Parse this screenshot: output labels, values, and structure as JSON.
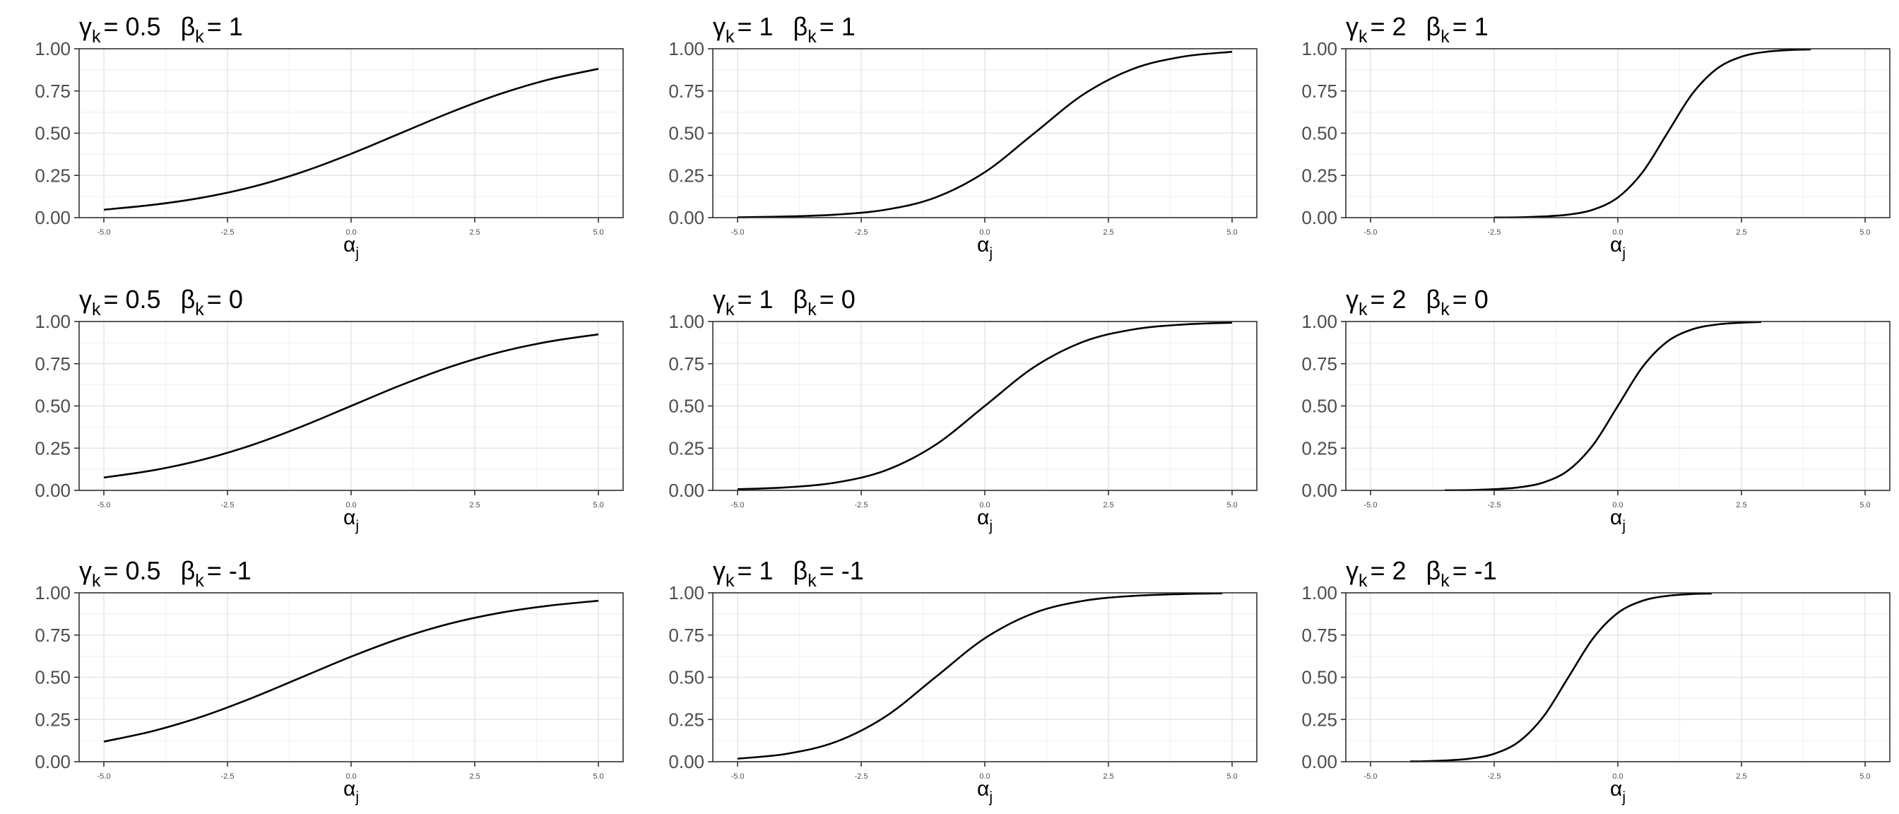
{
  "chart_data": [
    {
      "type": "line",
      "title": {
        "gamma": "γ",
        "gamma_sub": "k",
        "gamma_value": "= 0.5",
        "beta": "β",
        "beta_sub": "k",
        "beta_value": "= 1"
      },
      "xlabel": {
        "base": "α",
        "sub": "j"
      },
      "gamma": 0.5,
      "beta": 1,
      "x_domain": [
        -5,
        5
      ],
      "y_domain": [
        0,
        1
      ],
      "x_ticks": [
        -5,
        -2.5,
        0,
        2.5,
        5
      ],
      "x_tick_labels": [
        "-5.0",
        "-2.5",
        "0.0",
        "2.5",
        "5.0"
      ],
      "y_ticks": [
        0,
        0.25,
        0.5,
        0.75,
        1
      ],
      "y_tick_labels": [
        "0.00",
        "0.25",
        "0.50",
        "0.75",
        "1.00"
      ],
      "x": [
        -5,
        -4,
        -3,
        -2,
        -1,
        0,
        1,
        2,
        3,
        4,
        5
      ],
      "y": [
        0.047,
        0.076,
        0.119,
        0.182,
        0.269,
        0.378,
        0.5,
        0.622,
        0.731,
        0.818,
        0.881
      ],
      "grid": true,
      "legend": "none"
    },
    {
      "type": "line",
      "title": {
        "gamma": "γ",
        "gamma_sub": "k",
        "gamma_value": "= 1",
        "beta": "β",
        "beta_sub": "k",
        "beta_value": "= 1"
      },
      "xlabel": {
        "base": "α",
        "sub": "j"
      },
      "gamma": 1,
      "beta": 1,
      "x_domain": [
        -5,
        5
      ],
      "y_domain": [
        0,
        1
      ],
      "x_ticks": [
        -5,
        -2.5,
        0,
        2.5,
        5
      ],
      "x_tick_labels": [
        "-5.0",
        "-2.5",
        "0.0",
        "2.5",
        "5.0"
      ],
      "y_ticks": [
        0,
        0.25,
        0.5,
        0.75,
        1
      ],
      "y_tick_labels": [
        "0.00",
        "0.25",
        "0.50",
        "0.75",
        "1.00"
      ],
      "x": [
        -5,
        -4,
        -3,
        -2,
        -1,
        0,
        1,
        2,
        3,
        4,
        5
      ],
      "y": [
        0.002,
        0.007,
        0.018,
        0.047,
        0.119,
        0.269,
        0.5,
        0.731,
        0.881,
        0.953,
        0.982
      ],
      "grid": true,
      "legend": "none"
    },
    {
      "type": "line",
      "title": {
        "gamma": "γ",
        "gamma_sub": "k",
        "gamma_value": "= 2",
        "beta": "β",
        "beta_sub": "k",
        "beta_value": "= 1"
      },
      "xlabel": {
        "base": "α",
        "sub": "j"
      },
      "gamma": 2,
      "beta": 1,
      "x_domain": [
        -5,
        5
      ],
      "y_domain": [
        0,
        1
      ],
      "x_ticks": [
        -5,
        -2.5,
        0,
        2.5,
        5
      ],
      "x_tick_labels": [
        "-5.0",
        "-2.5",
        "0.0",
        "2.5",
        "5.0"
      ],
      "y_ticks": [
        0,
        0.25,
        0.5,
        0.75,
        1
      ],
      "y_tick_labels": [
        "0.00",
        "0.25",
        "0.50",
        "0.75",
        "1.00"
      ],
      "x": [
        -2.5,
        -2,
        -1.5,
        -1,
        -0.5,
        0,
        0.5,
        1,
        1.5,
        2,
        2.5,
        3,
        3.5,
        3.9
      ],
      "y": [
        0.001,
        0.002,
        0.007,
        0.018,
        0.047,
        0.119,
        0.269,
        0.5,
        0.731,
        0.881,
        0.953,
        0.982,
        0.993,
        0.996
      ],
      "grid": true,
      "legend": "none"
    },
    {
      "type": "line",
      "title": {
        "gamma": "γ",
        "gamma_sub": "k",
        "gamma_value": "= 0.5",
        "beta": "β",
        "beta_sub": "k",
        "beta_value": "= 0"
      },
      "xlabel": {
        "base": "α",
        "sub": "j"
      },
      "gamma": 0.5,
      "beta": 0,
      "x_domain": [
        -5,
        5
      ],
      "y_domain": [
        0,
        1
      ],
      "x_ticks": [
        -5,
        -2.5,
        0,
        2.5,
        5
      ],
      "x_tick_labels": [
        "-5.0",
        "-2.5",
        "0.0",
        "2.5",
        "5.0"
      ],
      "y_ticks": [
        0,
        0.25,
        0.5,
        0.75,
        1
      ],
      "y_tick_labels": [
        "0.00",
        "0.25",
        "0.50",
        "0.75",
        "1.00"
      ],
      "x": [
        -5,
        -4,
        -3,
        -2,
        -1,
        0,
        1,
        2,
        3,
        4,
        5
      ],
      "y": [
        0.076,
        0.119,
        0.182,
        0.269,
        0.378,
        0.5,
        0.622,
        0.731,
        0.818,
        0.881,
        0.924
      ],
      "grid": true,
      "legend": "none"
    },
    {
      "type": "line",
      "title": {
        "gamma": "γ",
        "gamma_sub": "k",
        "gamma_value": "= 1",
        "beta": "β",
        "beta_sub": "k",
        "beta_value": "= 0"
      },
      "xlabel": {
        "base": "α",
        "sub": "j"
      },
      "gamma": 1,
      "beta": 0,
      "x_domain": [
        -5,
        5
      ],
      "y_domain": [
        0,
        1
      ],
      "x_ticks": [
        -5,
        -2.5,
        0,
        2.5,
        5
      ],
      "x_tick_labels": [
        "-5.0",
        "-2.5",
        "0.0",
        "2.5",
        "5.0"
      ],
      "y_ticks": [
        0,
        0.25,
        0.5,
        0.75,
        1
      ],
      "y_tick_labels": [
        "0.00",
        "0.25",
        "0.50",
        "0.75",
        "1.00"
      ],
      "x": [
        -5,
        -4,
        -3,
        -2,
        -1,
        0,
        1,
        2,
        3,
        4,
        5
      ],
      "y": [
        0.007,
        0.018,
        0.047,
        0.119,
        0.269,
        0.5,
        0.731,
        0.881,
        0.953,
        0.982,
        0.993
      ],
      "grid": true,
      "legend": "none"
    },
    {
      "type": "line",
      "title": {
        "gamma": "γ",
        "gamma_sub": "k",
        "gamma_value": "= 2",
        "beta": "β",
        "beta_sub": "k",
        "beta_value": "= 0"
      },
      "xlabel": {
        "base": "α",
        "sub": "j"
      },
      "gamma": 2,
      "beta": 0,
      "x_domain": [
        -5,
        5
      ],
      "y_domain": [
        0,
        1
      ],
      "x_ticks": [
        -5,
        -2.5,
        0,
        2.5,
        5
      ],
      "x_tick_labels": [
        "-5.0",
        "-2.5",
        "0.0",
        "2.5",
        "5.0"
      ],
      "y_ticks": [
        0,
        0.25,
        0.5,
        0.75,
        1
      ],
      "y_tick_labels": [
        "0.00",
        "0.25",
        "0.50",
        "0.75",
        "1.00"
      ],
      "x": [
        -3.5,
        -3,
        -2.5,
        -2,
        -1.5,
        -1,
        -0.5,
        0,
        0.5,
        1,
        1.5,
        2,
        2.5,
        2.9
      ],
      "y": [
        0.001,
        0.002,
        0.007,
        0.018,
        0.047,
        0.119,
        0.269,
        0.5,
        0.731,
        0.881,
        0.953,
        0.982,
        0.993,
        0.997
      ],
      "grid": true,
      "legend": "none"
    },
    {
      "type": "line",
      "title": {
        "gamma": "γ",
        "gamma_sub": "k",
        "gamma_value": "= 0.5",
        "beta": "β",
        "beta_sub": "k",
        "beta_value": "= -1"
      },
      "xlabel": {
        "base": "α",
        "sub": "j"
      },
      "gamma": 0.5,
      "beta": -1,
      "x_domain": [
        -5,
        5
      ],
      "y_domain": [
        0,
        1
      ],
      "x_ticks": [
        -5,
        -2.5,
        0,
        2.5,
        5
      ],
      "x_tick_labels": [
        "-5.0",
        "-2.5",
        "0.0",
        "2.5",
        "5.0"
      ],
      "y_ticks": [
        0,
        0.25,
        0.5,
        0.75,
        1
      ],
      "y_tick_labels": [
        "0.00",
        "0.25",
        "0.50",
        "0.75",
        "1.00"
      ],
      "x": [
        -5,
        -4,
        -3,
        -2,
        -1,
        0,
        1,
        2,
        3,
        4,
        5
      ],
      "y": [
        0.119,
        0.182,
        0.269,
        0.378,
        0.5,
        0.622,
        0.731,
        0.818,
        0.881,
        0.924,
        0.953
      ],
      "grid": true,
      "legend": "none"
    },
    {
      "type": "line",
      "title": {
        "gamma": "γ",
        "gamma_sub": "k",
        "gamma_value": "= 1",
        "beta": "β",
        "beta_sub": "k",
        "beta_value": "= -1"
      },
      "xlabel": {
        "base": "α",
        "sub": "j"
      },
      "gamma": 1,
      "beta": -1,
      "x_domain": [
        -5,
        5
      ],
      "y_domain": [
        0,
        1
      ],
      "x_ticks": [
        -5,
        -2.5,
        0,
        2.5,
        5
      ],
      "x_tick_labels": [
        "-5.0",
        "-2.5",
        "0.0",
        "2.5",
        "5.0"
      ],
      "y_ticks": [
        0,
        0.25,
        0.5,
        0.75,
        1
      ],
      "y_tick_labels": [
        "0.00",
        "0.25",
        "0.50",
        "0.75",
        "1.00"
      ],
      "x": [
        -5,
        -4,
        -3,
        -2,
        -1,
        0,
        1,
        2,
        3,
        4,
        4.8
      ],
      "y": [
        0.018,
        0.047,
        0.119,
        0.269,
        0.5,
        0.731,
        0.881,
        0.953,
        0.982,
        0.993,
        0.997
      ],
      "grid": true,
      "legend": "none"
    },
    {
      "type": "line",
      "title": {
        "gamma": "γ",
        "gamma_sub": "k",
        "gamma_value": "= 2",
        "beta": "β",
        "beta_sub": "k",
        "beta_value": "= -1"
      },
      "xlabel": {
        "base": "α",
        "sub": "j"
      },
      "gamma": 2,
      "beta": -1,
      "x_domain": [
        -5,
        5
      ],
      "y_domain": [
        0,
        1
      ],
      "x_ticks": [
        -5,
        -2.5,
        0,
        2.5,
        5
      ],
      "x_tick_labels": [
        "-5.0",
        "-2.5",
        "0.0",
        "2.5",
        "5.0"
      ],
      "y_ticks": [
        0,
        0.25,
        0.5,
        0.75,
        1
      ],
      "y_tick_labels": [
        "0.00",
        "0.25",
        "0.50",
        "0.75",
        "1.00"
      ],
      "x": [
        -4.2,
        -4,
        -3.5,
        -3,
        -2.5,
        -2,
        -1.5,
        -1,
        -0.5,
        0,
        0.5,
        1,
        1.5,
        1.9
      ],
      "y": [
        0.002,
        0.002,
        0.007,
        0.018,
        0.047,
        0.119,
        0.269,
        0.5,
        0.731,
        0.881,
        0.953,
        0.982,
        0.993,
        0.996
      ],
      "grid": true,
      "legend": "none"
    }
  ]
}
